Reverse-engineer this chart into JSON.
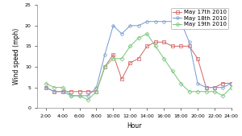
{
  "title": "",
  "xlabel": "Hour",
  "ylabel": "Wind speed (mph)",
  "xlim": [
    1,
    24
  ],
  "ylim": [
    0,
    25
  ],
  "xticks": [
    2,
    4,
    6,
    8,
    10,
    12,
    14,
    16,
    18,
    20,
    22,
    24
  ],
  "yticks": [
    0,
    5,
    10,
    15,
    20,
    25
  ],
  "hours": [
    2,
    3,
    4,
    5,
    6,
    7,
    8,
    9,
    10,
    11,
    12,
    13,
    14,
    15,
    16,
    17,
    18,
    19,
    20,
    21,
    22,
    23,
    24
  ],
  "may17": [
    5,
    4,
    4,
    4,
    4,
    4,
    4,
    10,
    13,
    7,
    11,
    12,
    15,
    16,
    16,
    15,
    15,
    15,
    12,
    5,
    5,
    6,
    6
  ],
  "may18": [
    5,
    4,
    4,
    3,
    3,
    3,
    5,
    13,
    20,
    18,
    20,
    20,
    21,
    21,
    21,
    21,
    21,
    16,
    6,
    5,
    5,
    5,
    6
  ],
  "may19": [
    6,
    5,
    5,
    3,
    3,
    2,
    4,
    10,
    12,
    12,
    15,
    17,
    18,
    15,
    12,
    9,
    6,
    4,
    4,
    4,
    4,
    3,
    5
  ],
  "color17": "#d46e6e",
  "color18": "#7b9fd4",
  "color19": "#7ec87e",
  "label17": "May 17th 2010",
  "label18": "May 18th 2010",
  "label19": "May 19th 2010",
  "marker17": "s",
  "marker18": "o",
  "marker19": "D",
  "bg_color": "#ffffff",
  "legend_fontsize": 5.0,
  "tick_fontsize": 4.5,
  "label_fontsize": 5.5,
  "linewidth": 0.75,
  "markersize": 2.5
}
